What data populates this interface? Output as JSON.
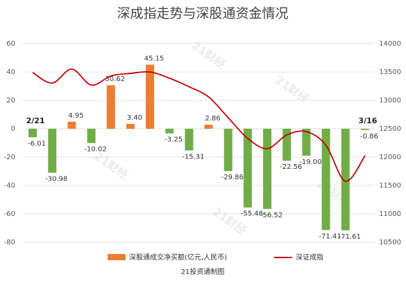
{
  "chart_data": {
    "type": "bar-line",
    "title": "深成指走势与深股通资金情况",
    "categories": [
      "2/21",
      null,
      null,
      null,
      null,
      null,
      null,
      null,
      null,
      null,
      null,
      null,
      null,
      null,
      null,
      null,
      null,
      "3/16"
    ],
    "series": [
      {
        "name": "深股通成交净买额(亿元,人民币)",
        "color": "#ed7d31",
        "negative_color": "#70ad47",
        "values": [
          -6.01,
          -30.98,
          4.95,
          -10.02,
          30.62,
          3.4,
          45.15,
          -3.25,
          -15.31,
          2.86,
          -29.86,
          -55.48,
          -56.52,
          -22.56,
          -19.0,
          -71.41,
          -71.61,
          -0.86
        ],
        "value_labels": [
          "-6.01",
          "-30.98",
          "4.95",
          "-10.02",
          "30.62",
          "3.40",
          "45.15",
          "-3.25",
          "-15.31",
          "2.86",
          "-29.86",
          "-55.48",
          "-56.52",
          "-22.56",
          "-19.00",
          "-71.41",
          "-71.61",
          "-0.86"
        ]
      },
      {
        "name": "深证成指",
        "color": "#c00000",
        "axis": "y2",
        "values": [
          13490,
          13305,
          13550,
          13270,
          13430,
          13475,
          13500,
          13390,
          13240,
          13060,
          12695,
          12330,
          12150,
          12390,
          12450,
          12210,
          11575,
          12025
        ]
      }
    ],
    "ylim": [
      -80,
      60
    ],
    "yticks": [
      -80,
      -60,
      -40,
      -20,
      0,
      20,
      40,
      60
    ],
    "y2lim": [
      10500,
      14000
    ],
    "y2ticks": [
      10500,
      11000,
      11500,
      12000,
      12500,
      13000,
      13500,
      14000
    ],
    "footer": "21投资通制图",
    "watermark": "21财经"
  }
}
